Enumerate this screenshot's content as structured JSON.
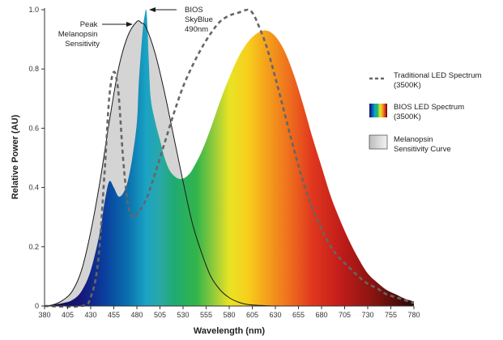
{
  "chart_data": {
    "type": "area",
    "xlabel": "Wavelength (nm)",
    "ylabel": "Relative Power (AU)",
    "xlim": [
      380,
      780
    ],
    "ylim": [
      0,
      1.0
    ],
    "x_ticks": [
      380,
      405,
      430,
      455,
      480,
      505,
      530,
      555,
      580,
      605,
      630,
      655,
      680,
      705,
      730,
      755,
      780
    ],
    "y_ticks": [
      0,
      0.2,
      0.4,
      0.6,
      0.8,
      1.0
    ],
    "y_tick_labels": [
      "0",
      "0.2",
      "0.4",
      "0.6",
      "0.8",
      "1.0"
    ],
    "grid": false,
    "legend_position": "right",
    "series": [
      {
        "name": "Traditional LED Spectrum (3500K)",
        "style": "dashed",
        "color": "#666666",
        "x": [
          380,
          420,
          430,
          438,
          445,
          450,
          455,
          460,
          465,
          470,
          475,
          480,
          490,
          500,
          510,
          520,
          530,
          540,
          550,
          560,
          570,
          580,
          590,
          600,
          605,
          610,
          620,
          630,
          640,
          650,
          660,
          670,
          680,
          690,
          700,
          710,
          720,
          730,
          740,
          750,
          760,
          770,
          780
        ],
        "values": [
          0,
          0,
          0.03,
          0.15,
          0.45,
          0.7,
          0.79,
          0.72,
          0.5,
          0.35,
          0.3,
          0.31,
          0.36,
          0.45,
          0.55,
          0.65,
          0.74,
          0.81,
          0.87,
          0.92,
          0.96,
          0.98,
          0.99,
          1.0,
          0.99,
          0.96,
          0.88,
          0.77,
          0.65,
          0.53,
          0.42,
          0.33,
          0.26,
          0.2,
          0.16,
          0.13,
          0.1,
          0.075,
          0.06,
          0.04,
          0.03,
          0.02,
          0.01
        ]
      },
      {
        "name": "BIOS LED Spectrum (3500K)",
        "style": "spectral-fill",
        "x": [
          380,
          400,
          410,
          420,
          430,
          440,
          445,
          450,
          455,
          460,
          465,
          470,
          475,
          480,
          482,
          485,
          487,
          489,
          490,
          491,
          493,
          495,
          500,
          505,
          510,
          515,
          520,
          525,
          530,
          535,
          540,
          550,
          560,
          570,
          580,
          590,
          600,
          610,
          620,
          630,
          640,
          650,
          660,
          670,
          680,
          690,
          700,
          710,
          720,
          730,
          740,
          750,
          760,
          770,
          780
        ],
        "values": [
          0,
          0.01,
          0.02,
          0.05,
          0.12,
          0.25,
          0.35,
          0.42,
          0.4,
          0.37,
          0.38,
          0.42,
          0.5,
          0.62,
          0.75,
          0.88,
          0.95,
          0.99,
          1.0,
          0.97,
          0.82,
          0.7,
          0.62,
          0.56,
          0.5,
          0.46,
          0.44,
          0.43,
          0.43,
          0.44,
          0.46,
          0.52,
          0.6,
          0.69,
          0.77,
          0.84,
          0.89,
          0.92,
          0.93,
          0.91,
          0.86,
          0.78,
          0.68,
          0.57,
          0.47,
          0.37,
          0.29,
          0.22,
          0.16,
          0.11,
          0.08,
          0.055,
          0.04,
          0.025,
          0.015
        ]
      },
      {
        "name": "Melanopsin Sensitivity Curve",
        "style": "gray-fill",
        "color": "#d4d4d4",
        "x": [
          380,
          390,
          400,
          410,
          420,
          430,
          440,
          450,
          460,
          470,
          480,
          485,
          490,
          500,
          510,
          520,
          530,
          540,
          550,
          560,
          570,
          580,
          590,
          600,
          620,
          640,
          660,
          680,
          700,
          720,
          740,
          760,
          780
        ],
        "values": [
          0,
          0.005,
          0.02,
          0.05,
          0.12,
          0.25,
          0.42,
          0.62,
          0.8,
          0.91,
          0.96,
          0.955,
          0.94,
          0.85,
          0.72,
          0.57,
          0.42,
          0.28,
          0.18,
          0.1,
          0.055,
          0.028,
          0.013,
          0.005,
          0.001,
          0,
          0,
          0,
          0,
          0,
          0,
          0,
          0
        ]
      }
    ],
    "annotations": [
      {
        "id": "peak",
        "lines": [
          "Peak",
          "Melanopsin",
          "Sensitivity"
        ]
      },
      {
        "id": "bios",
        "lines": [
          "BIOS",
          "SkyBlue",
          "490nm"
        ]
      }
    ]
  },
  "legend": [
    {
      "id": "trad",
      "lines": [
        "Traditional LED Spectrum",
        "(3500K)"
      ]
    },
    {
      "id": "bios",
      "lines": [
        "BIOS LED Spectrum",
        "(3500K)"
      ]
    },
    {
      "id": "mel",
      "lines": [
        "Melanopsin",
        "Sensitivity Curve"
      ]
    }
  ]
}
